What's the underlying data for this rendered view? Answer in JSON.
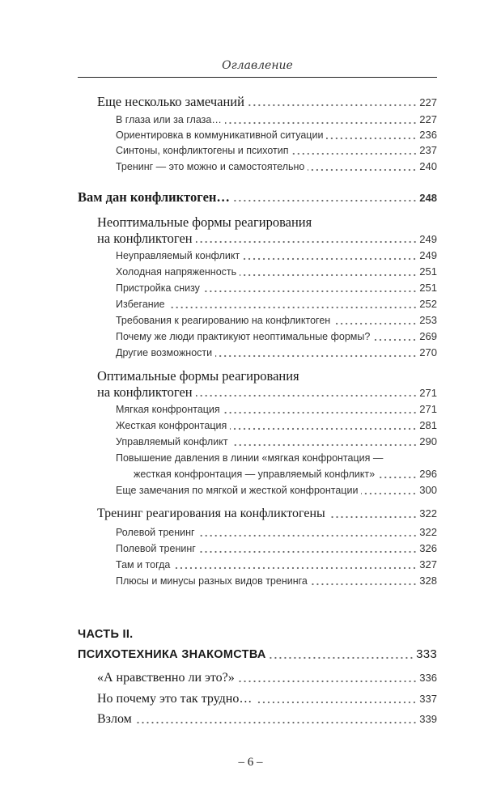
{
  "header": {
    "title": "Оглавление"
  },
  "entries": [
    {
      "title": "Еще несколько замечаний",
      "page": "227"
    },
    {
      "title": "В глаза или за глаза…",
      "page": "227"
    },
    {
      "title": "Ориентировка в коммуникативной ситуации",
      "page": "236"
    },
    {
      "title": "Синтоны, конфликтогены и психотип",
      "page": "237"
    },
    {
      "title": "Тренинг — это можно и самостоятельно",
      "page": "240"
    },
    {
      "title": "Вам дан конфликтоген…",
      "page": "248"
    },
    {
      "title": "Неоптимальные формы реагирования",
      "title_cont": "на конфликтоген",
      "page": "249"
    },
    {
      "title": "Неуправляемый конфликт",
      "page": "249"
    },
    {
      "title": "Холодная напряженность",
      "page": "251"
    },
    {
      "title": "Пристройка снизу",
      "page": "251"
    },
    {
      "title": "Избегание",
      "page": "252"
    },
    {
      "title": "Требования к реагированию на конфликтоген",
      "page": "253"
    },
    {
      "title": "Почему же люди практикуют неоптимальные формы?",
      "page": "269"
    },
    {
      "title": "Другие возможности",
      "page": "270"
    },
    {
      "title": "Оптимальные формы реагирования",
      "title_cont": "на конфликтоген",
      "page": "271"
    },
    {
      "title": "Мягкая конфронтация",
      "page": "271"
    },
    {
      "title": "Жесткая конфронтация",
      "page": "281"
    },
    {
      "title": "Управляемый конфликт",
      "page": "290"
    },
    {
      "title": "Повышение давления в линии «мягкая конфронтация —",
      "title_cont": "жесткая конфронтация — управляемый конфликт»",
      "page": "296"
    },
    {
      "title": "Еще замечания по мягкой и жесткой конфронтации",
      "page": "300"
    },
    {
      "title": "Тренинг реагирования на конфликтогены",
      "page": "322"
    },
    {
      "title": "Ролевой тренинг",
      "page": "322"
    },
    {
      "title": "Полевой тренинг",
      "page": "326"
    },
    {
      "title": "Там и тогда",
      "page": "327"
    },
    {
      "title": "Плюсы и минусы разных видов тренинга",
      "page": "328"
    },
    {
      "title": "ЧАСТЬ II.",
      "title_cont": "ПСИХОТЕХНИКА ЗНАКОМСТВА",
      "page": "333"
    },
    {
      "title": "«А нравственно ли это?»",
      "page": "336"
    },
    {
      "title": "Но почему это так трудно…",
      "page": "337"
    },
    {
      "title": "Взлом",
      "page": "339"
    }
  ],
  "page_number": "– 6 –"
}
